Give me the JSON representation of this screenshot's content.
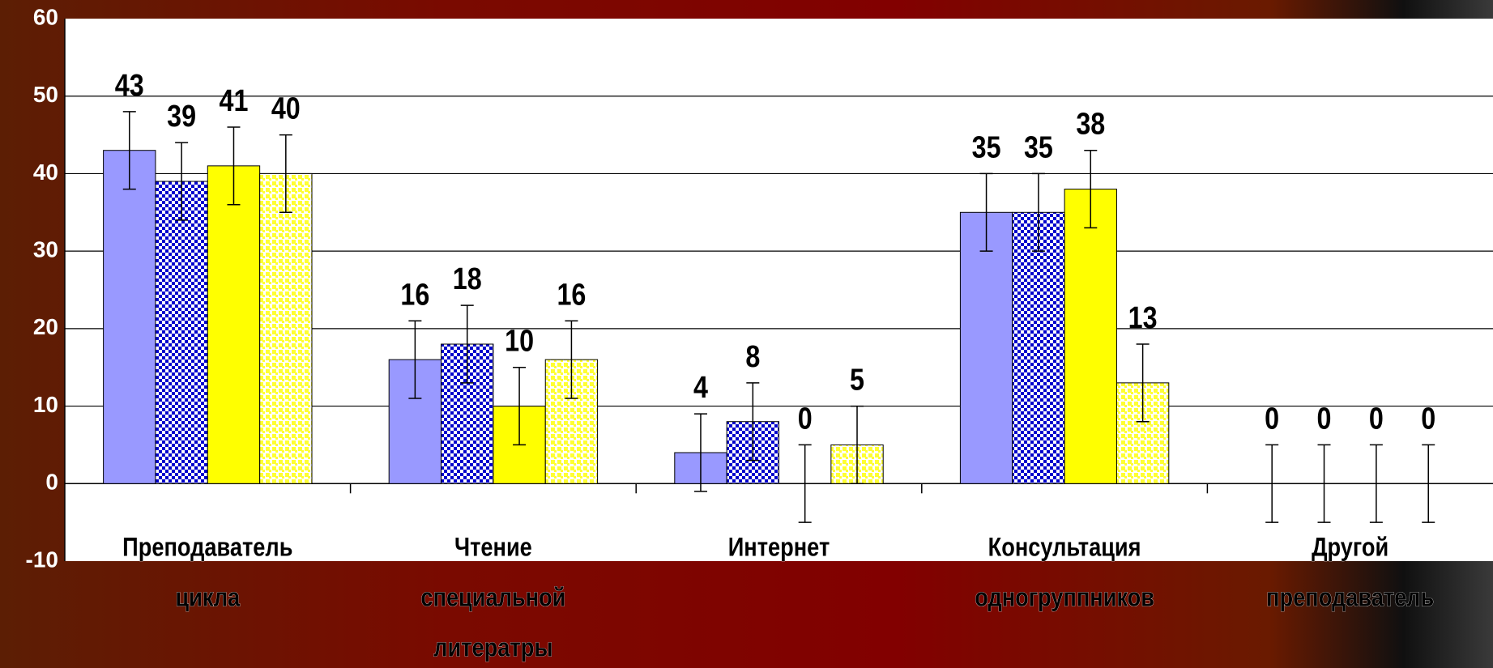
{
  "chart_data": {
    "type": "bar",
    "categories": [
      "Преподаватель цикла",
      "Чтение специальной литератры",
      "Интернет",
      "Консультация одногруппников",
      "Другой преподаватель"
    ],
    "series": [
      {
        "color": "#9999ff",
        "pattern": "solid",
        "values": [
          43,
          16,
          4,
          35,
          0
        ],
        "errors": [
          5,
          5,
          5,
          5,
          5
        ]
      },
      {
        "color": "#0000cc",
        "pattern": "checker",
        "values": [
          39,
          18,
          8,
          35,
          0
        ],
        "errors": [
          5,
          5,
          5,
          5,
          5
        ]
      },
      {
        "color": "#ffff00",
        "pattern": "solid",
        "values": [
          41,
          10,
          0,
          38,
          0
        ],
        "errors": [
          5,
          5,
          5,
          5,
          5
        ]
      },
      {
        "color": "#ffff33",
        "pattern": "dots",
        "values": [
          40,
          16,
          5,
          13,
          0
        ],
        "errors": [
          5,
          5,
          5,
          5,
          5
        ]
      }
    ],
    "ylim": [
      -10,
      60
    ],
    "yticks": [
      -10,
      0,
      10,
      20,
      30,
      40,
      50,
      60
    ],
    "grid": true
  }
}
